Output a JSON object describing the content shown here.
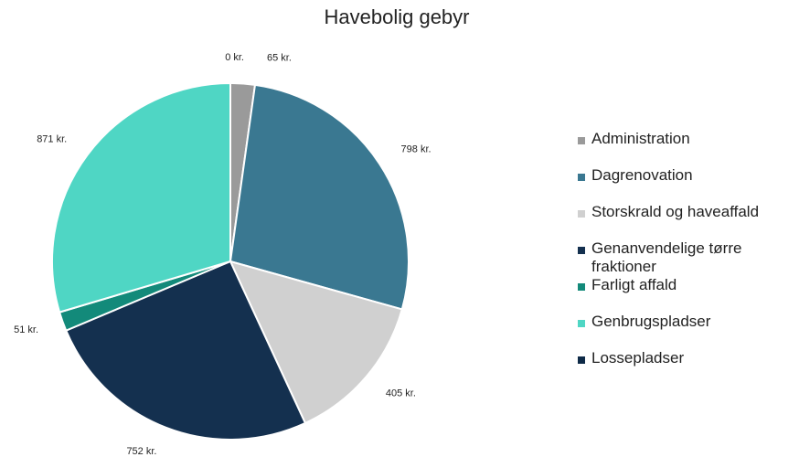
{
  "chart_data": {
    "type": "pie",
    "title": "Havebolig gebyr",
    "categories": [
      "Administration",
      "Dagrenovation",
      "Storskrald og haveaffald",
      "Genanvendelige tørre fraktioner",
      "Farligt affald",
      "Genbrugspladser",
      "Lossepladser"
    ],
    "values": [
      65,
      798,
      405,
      752,
      51,
      871,
      0
    ],
    "value_labels": [
      "65 kr.",
      "798 kr.",
      "405 kr.",
      "752 kr.",
      "51 kr.",
      "871 kr.",
      "0 kr."
    ],
    "colors": [
      "#9a9a9a",
      "#3a7891",
      "#d0d0d0",
      "#14304f",
      "#138a7a",
      "#4fd6c4",
      "#0e2a47"
    ],
    "legend": "right"
  }
}
